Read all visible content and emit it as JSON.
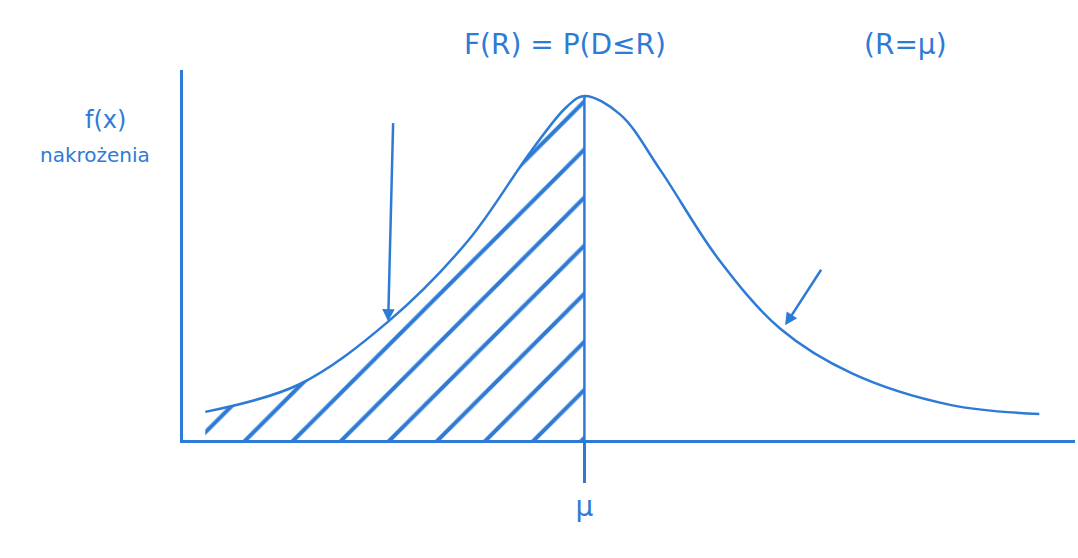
{
  "chart_data": {
    "type": "line",
    "x": [
      2.5,
      13,
      23,
      32,
      39,
      43,
      45,
      49,
      53.5,
      60,
      67,
      75,
      86,
      96
    ],
    "values": [
      7.6,
      15,
      32,
      54,
      78,
      90,
      93,
      88,
      73,
      49,
      30,
      18,
      9.5,
      7
    ],
    "color": "#2e7bd6",
    "xlim": [
      0,
      100
    ],
    "ylim": [
      0,
      100
    ],
    "xticks": [
      {
        "value": 45,
        "label": "μ"
      }
    ],
    "yticks": [],
    "ylabel": "f(x)",
    "tick_labels": "x",
    "grid": false,
    "annotations": [
      "nakrożenia",
      "F(R) = P(D≤R)",
      "(R=μ)"
    ]
  }
}
